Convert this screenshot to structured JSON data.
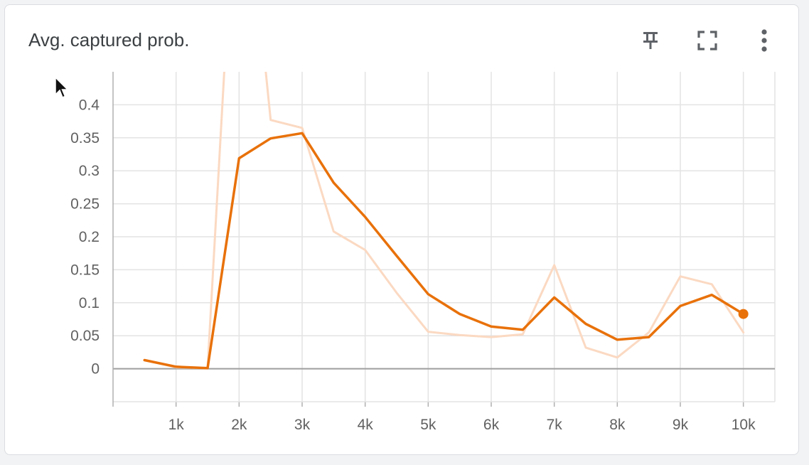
{
  "card": {
    "title": "Avg. captured prob.",
    "actions": {
      "pin_icon": "pin-icon",
      "fullscreen_icon": "fullscreen-icon",
      "more_icon": "more-vert-icon"
    }
  },
  "chart_data": {
    "type": "line",
    "title": "Avg. captured prob.",
    "xlabel": "",
    "ylabel": "",
    "xlim": [
      0,
      10500
    ],
    "ylim": [
      -0.05,
      0.45
    ],
    "x_ticks": [
      1000,
      2000,
      3000,
      4000,
      5000,
      6000,
      7000,
      8000,
      9000,
      10000
    ],
    "x_tick_labels": [
      "1k",
      "2k",
      "3k",
      "4k",
      "5k",
      "6k",
      "7k",
      "8k",
      "9k",
      "10k"
    ],
    "y_ticks": [
      0,
      0.05,
      0.1,
      0.15,
      0.2,
      0.25,
      0.3,
      0.35,
      0.4
    ],
    "y_tick_labels": [
      "0",
      "0.05",
      "0.1",
      "0.15",
      "0.2",
      "0.25",
      "0.3",
      "0.35",
      "0.4"
    ],
    "grid": true,
    "series": [
      {
        "role": "raw",
        "color": "#fbd9c2",
        "x": [
          500,
          1000,
          1500,
          2000,
          2500,
          3000,
          3500,
          4000,
          4500,
          5000,
          5500,
          6000,
          6500,
          7000,
          7500,
          8000,
          8500,
          9000,
          9500,
          10000
        ],
        "y": [
          0.013,
          0.002,
          0.001,
          0.85,
          0.377,
          0.365,
          0.208,
          0.18,
          0.115,
          0.056,
          0.051,
          0.048,
          0.052,
          0.157,
          0.032,
          0.017,
          0.055,
          0.14,
          0.128,
          0.055
        ]
      },
      {
        "role": "smoothed",
        "color": "#e8710a",
        "x": [
          500,
          1000,
          1500,
          2000,
          2500,
          3000,
          3500,
          4000,
          4500,
          5000,
          5500,
          6000,
          6500,
          7000,
          7500,
          8000,
          8500,
          9000,
          9500,
          10000
        ],
        "y": [
          0.013,
          0.003,
          0.001,
          0.319,
          0.349,
          0.357,
          0.282,
          0.23,
          0.171,
          0.113,
          0.083,
          0.064,
          0.059,
          0.108,
          0.068,
          0.044,
          0.048,
          0.095,
          0.112,
          0.083
        ]
      }
    ]
  }
}
